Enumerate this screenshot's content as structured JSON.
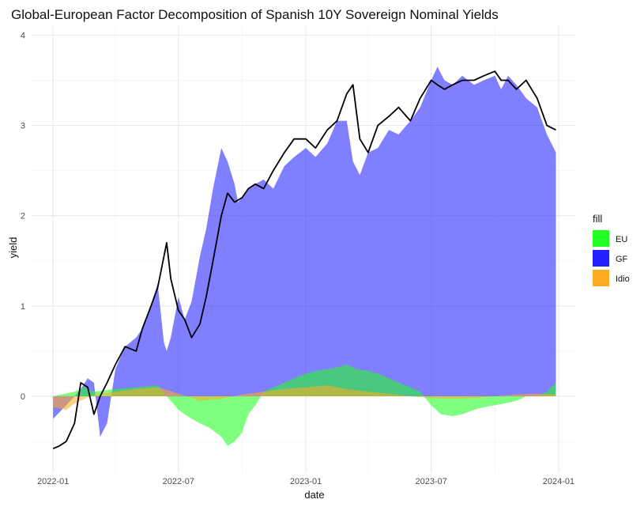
{
  "chart_data": {
    "type": "area",
    "title": "Global-European Factor Decomposition of Spanish 10Y Sovereign Nominal Yields",
    "xlabel": "date",
    "ylabel": "yield",
    "x_ticks": [
      "2022-01",
      "2022-07",
      "2023-01",
      "2023-07",
      "2024-01"
    ],
    "y_ticks": [
      "0",
      "1",
      "2",
      "3",
      "4"
    ],
    "ylim": [
      -0.85,
      4.1
    ],
    "xlim": [
      "2021-12-01",
      "2024-01-25"
    ],
    "grid": true,
    "legend": {
      "title": "fill",
      "position": "right",
      "entries": [
        {
          "label": "EU",
          "color": "#22ff22"
        },
        {
          "label": "GF",
          "color": "#2222ff"
        },
        {
          "label": "Idio",
          "color": "#ffaa22"
        }
      ]
    },
    "series": [
      {
        "name": "GF",
        "kind": "area",
        "color": "#2222ff",
        "opacity": 0.58,
        "x": [
          "2022-01-01",
          "2022-01-20",
          "2022-02-01",
          "2022-02-10",
          "2022-02-20",
          "2022-03-01",
          "2022-03-10",
          "2022-03-20",
          "2022-04-01",
          "2022-04-15",
          "2022-05-01",
          "2022-05-10",
          "2022-05-20",
          "2022-06-01",
          "2022-06-10",
          "2022-06-14",
          "2022-06-20",
          "2022-07-01",
          "2022-07-10",
          "2022-07-20",
          "2022-08-01",
          "2022-08-10",
          "2022-08-20",
          "2022-09-01",
          "2022-09-10",
          "2022-09-20",
          "2022-09-25",
          "2022-10-01",
          "2022-10-10",
          "2022-10-20",
          "2022-11-01",
          "2022-11-15",
          "2022-12-01",
          "2022-12-15",
          "2023-01-01",
          "2023-01-15",
          "2023-02-01",
          "2023-02-15",
          "2023-03-01",
          "2023-03-10",
          "2023-03-20",
          "2023-04-01",
          "2023-04-15",
          "2023-05-01",
          "2023-05-15",
          "2023-06-01",
          "2023-06-15",
          "2023-07-01",
          "2023-07-10",
          "2023-07-20",
          "2023-08-01",
          "2023-08-15",
          "2023-09-01",
          "2023-09-15",
          "2023-10-01",
          "2023-10-10",
          "2023-10-20",
          "2023-11-01",
          "2023-11-15",
          "2023-12-01",
          "2023-12-15",
          "2023-12-28"
        ],
        "values": [
          -0.25,
          -0.1,
          0.0,
          0.08,
          0.2,
          0.15,
          -0.45,
          -0.3,
          0.3,
          0.55,
          0.65,
          0.75,
          0.95,
          1.25,
          0.6,
          0.5,
          0.65,
          1.1,
          0.85,
          1.05,
          1.55,
          1.85,
          2.3,
          2.75,
          2.6,
          2.35,
          2.15,
          2.2,
          2.3,
          2.35,
          2.4,
          2.3,
          2.55,
          2.65,
          2.75,
          2.65,
          2.8,
          3.05,
          3.05,
          2.6,
          2.45,
          2.7,
          2.75,
          2.95,
          2.9,
          3.05,
          3.2,
          3.5,
          3.65,
          3.5,
          3.45,
          3.55,
          3.45,
          3.5,
          3.55,
          3.4,
          3.55,
          3.45,
          3.3,
          3.2,
          2.9,
          2.7
        ]
      },
      {
        "name": "EU",
        "kind": "area",
        "color": "#22ff22",
        "opacity": 0.58,
        "x": [
          "2022-01-01",
          "2022-02-01",
          "2022-02-15",
          "2022-03-01",
          "2022-04-01",
          "2022-05-01",
          "2022-06-01",
          "2022-07-01",
          "2022-07-10",
          "2022-07-20",
          "2022-08-01",
          "2022-08-15",
          "2022-09-01",
          "2022-09-10",
          "2022-09-20",
          "2022-10-01",
          "2022-10-10",
          "2022-10-20",
          "2022-11-01",
          "2022-11-15",
          "2022-12-01",
          "2022-12-15",
          "2023-01-01",
          "2023-01-15",
          "2023-02-01",
          "2023-02-15",
          "2023-03-01",
          "2023-03-15",
          "2023-04-01",
          "2023-04-15",
          "2023-05-01",
          "2023-05-15",
          "2023-06-01",
          "2023-06-15",
          "2023-07-01",
          "2023-07-15",
          "2023-08-01",
          "2023-08-15",
          "2023-09-01",
          "2023-09-15",
          "2023-10-01",
          "2023-10-15",
          "2023-11-01",
          "2023-11-15",
          "2023-12-01",
          "2023-12-15",
          "2023-12-28"
        ],
        "values": [
          0.0,
          0.05,
          0.1,
          0.05,
          0.08,
          0.1,
          0.12,
          -0.15,
          -0.2,
          -0.25,
          -0.3,
          -0.35,
          -0.45,
          -0.55,
          -0.5,
          -0.4,
          -0.2,
          -0.1,
          0.05,
          0.1,
          0.15,
          0.2,
          0.25,
          0.28,
          0.3,
          0.32,
          0.35,
          0.3,
          0.28,
          0.25,
          0.2,
          0.15,
          0.1,
          0.05,
          -0.1,
          -0.2,
          -0.22,
          -0.2,
          -0.15,
          -0.12,
          -0.1,
          -0.08,
          -0.05,
          0.0,
          0.0,
          0.05,
          0.15
        ]
      },
      {
        "name": "Idio",
        "kind": "area",
        "color": "#ffaa22",
        "opacity": 0.58,
        "x": [
          "2022-01-01",
          "2022-01-20",
          "2022-02-01",
          "2022-02-15",
          "2022-03-01",
          "2022-04-01",
          "2022-05-01",
          "2022-06-01",
          "2022-07-01",
          "2022-08-01",
          "2022-09-01",
          "2022-10-01",
          "2022-11-01",
          "2022-12-01",
          "2023-01-01",
          "2023-02-01",
          "2023-03-01",
          "2023-04-01",
          "2023-05-01",
          "2023-06-01",
          "2023-07-01",
          "2023-08-01",
          "2023-09-01",
          "2023-10-01",
          "2023-11-01",
          "2023-12-01",
          "2023-12-28"
        ],
        "values": [
          -0.12,
          -0.15,
          -0.08,
          -0.03,
          0.02,
          0.05,
          0.08,
          0.1,
          0.03,
          -0.05,
          -0.03,
          0.02,
          0.05,
          0.08,
          0.1,
          0.12,
          0.08,
          0.05,
          0.03,
          0.0,
          -0.02,
          -0.03,
          -0.02,
          0.0,
          0.02,
          0.03,
          0.02
        ]
      },
      {
        "name": "yield",
        "kind": "line",
        "color": "#000000",
        "x": [
          "2022-01-01",
          "2022-01-10",
          "2022-01-20",
          "2022-02-01",
          "2022-02-10",
          "2022-02-20",
          "2022-03-01",
          "2022-03-10",
          "2022-03-20",
          "2022-04-01",
          "2022-04-15",
          "2022-05-01",
          "2022-05-10",
          "2022-05-20",
          "2022-06-01",
          "2022-06-14",
          "2022-06-20",
          "2022-07-01",
          "2022-07-10",
          "2022-07-20",
          "2022-08-01",
          "2022-08-10",
          "2022-08-20",
          "2022-09-01",
          "2022-09-10",
          "2022-09-20",
          "2022-10-01",
          "2022-10-10",
          "2022-10-20",
          "2022-11-01",
          "2022-11-15",
          "2022-12-01",
          "2022-12-15",
          "2023-01-01",
          "2023-01-15",
          "2023-02-01",
          "2023-02-15",
          "2023-03-01",
          "2023-03-10",
          "2023-03-20",
          "2023-04-01",
          "2023-04-15",
          "2023-05-01",
          "2023-05-15",
          "2023-06-01",
          "2023-06-15",
          "2023-07-01",
          "2023-07-10",
          "2023-07-20",
          "2023-08-01",
          "2023-08-15",
          "2023-09-01",
          "2023-09-15",
          "2023-10-01",
          "2023-10-10",
          "2023-10-20",
          "2023-11-01",
          "2023-11-15",
          "2023-12-01",
          "2023-12-15",
          "2023-12-28"
        ],
        "values": [
          -0.58,
          -0.55,
          -0.5,
          -0.3,
          0.15,
          0.1,
          -0.2,
          0.0,
          0.15,
          0.35,
          0.55,
          0.5,
          0.75,
          0.95,
          1.2,
          1.7,
          1.3,
          0.95,
          0.85,
          0.65,
          0.8,
          1.1,
          1.5,
          2.0,
          2.25,
          2.15,
          2.2,
          2.3,
          2.35,
          2.3,
          2.5,
          2.7,
          2.85,
          2.85,
          2.75,
          2.95,
          3.05,
          3.35,
          3.45,
          2.85,
          2.7,
          3.0,
          3.1,
          3.2,
          3.05,
          3.3,
          3.5,
          3.45,
          3.4,
          3.45,
          3.5,
          3.5,
          3.55,
          3.6,
          3.5,
          3.5,
          3.4,
          3.5,
          3.3,
          3.0,
          2.95
        ]
      }
    ]
  }
}
